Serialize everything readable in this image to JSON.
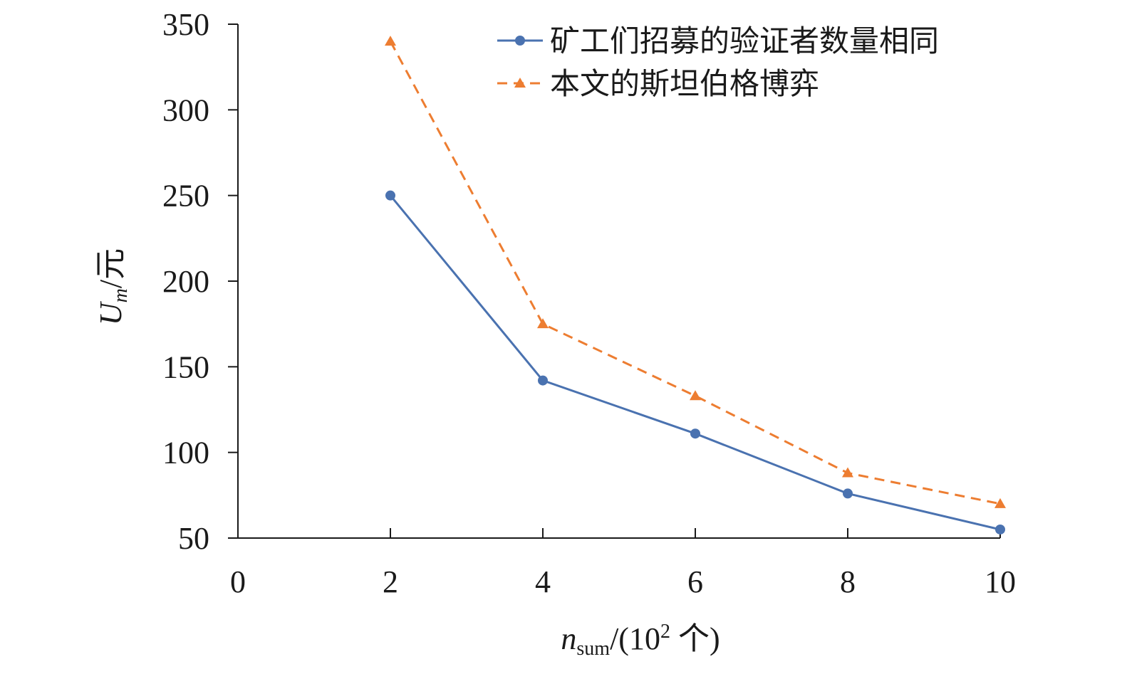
{
  "chart_data": {
    "type": "line",
    "title": "",
    "xlabel": {
      "symbol": "n",
      "subscript": "sum",
      "rest": "/(10",
      "superscript": "2",
      "unit": " 个)"
    },
    "ylabel": {
      "symbol": "U",
      "subscript": "m",
      "unit": "/元"
    },
    "x_ticks": [
      "0",
      "2",
      "4",
      "6",
      "8",
      "10"
    ],
    "y_ticks": [
      "50",
      "100",
      "150",
      "200",
      "250",
      "300",
      "350"
    ],
    "xlim": [
      0,
      10
    ],
    "ylim": [
      50,
      350
    ],
    "grid": false,
    "legend_position": "top-right",
    "x": [
      2,
      4,
      6,
      8,
      10
    ],
    "series": [
      {
        "name": "矿工们招募的验证者数量相同",
        "values": [
          250,
          142,
          111,
          76,
          55
        ],
        "color": "#4a72b0",
        "line_style": "solid",
        "marker": "circle"
      },
      {
        "name": "本文的斯坦伯格博弈",
        "values": [
          340,
          175,
          133,
          88,
          70
        ],
        "color": "#ed7d31",
        "line_style": "dashed",
        "marker": "triangle"
      }
    ]
  }
}
